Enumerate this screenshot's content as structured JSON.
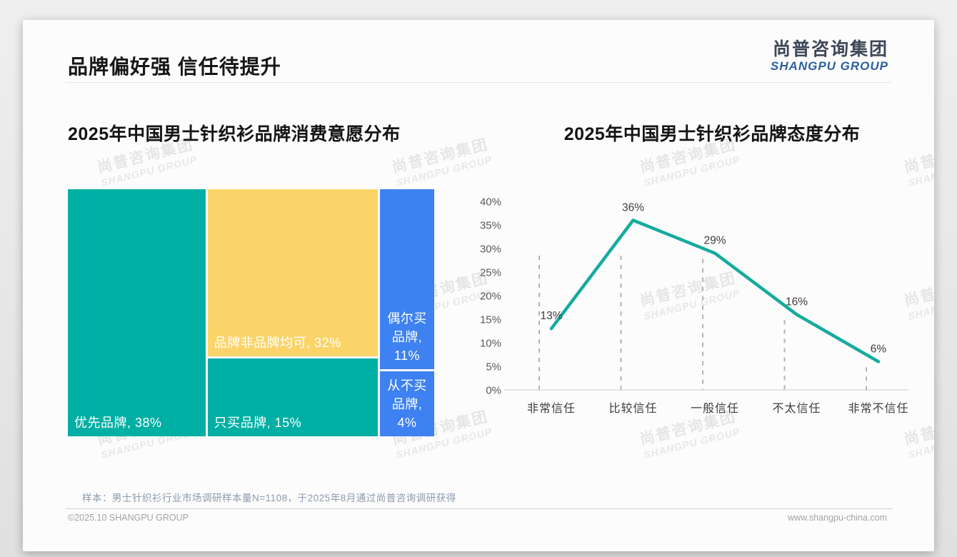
{
  "page": {
    "title": "品牌偏好强 信任待提升",
    "logo": {
      "cn": "尚普咨询集团",
      "en": "SHANGPU GROUP"
    },
    "watermark": {
      "cn": "尚普咨询集团",
      "en": "SHANGPU GROUP"
    },
    "source_note": "样本：男士针织衫行业市场调研样本量N=1108，于2025年8月通过尚普咨询调研获得",
    "footer": {
      "left": "©2025.10 SHANGPU GROUP",
      "right": "www.shangpu-china.com"
    }
  },
  "colors": {
    "teal": "#00AFA4",
    "yellow": "#FBD469",
    "blue": "#3E81F1",
    "line": "#15AB9E",
    "dash": "#B3B3B3",
    "axis": "#CCCCCC",
    "ytick": "#595959",
    "xtick": "#3D3D3D",
    "datalabel": "#3C3C3C"
  },
  "chart_data": [
    {
      "type": "treemap",
      "title": "2025年中国男士针织衫品牌消费意愿分布",
      "unit": "%",
      "segments": [
        {
          "label": "优先品牌",
          "value": 38,
          "color_key": "teal",
          "col": 0,
          "label_style": "bottom-left"
        },
        {
          "label": "品牌非品牌均可",
          "value": 32,
          "color_key": "yellow",
          "col": 1,
          "label_style": "bottom-left"
        },
        {
          "label": "只买品牌",
          "value": 15,
          "color_key": "teal",
          "col": 1,
          "label_style": "bottom-left"
        },
        {
          "label": "偶尔买品牌",
          "value": 11,
          "color_key": "blue",
          "col": 2,
          "label_style": "bottom-center-wrapped"
        },
        {
          "label": "从不买品牌",
          "value": 4,
          "color_key": "blue",
          "col": 2,
          "label_style": "bottom-center-wrapped"
        }
      ]
    },
    {
      "type": "line",
      "title": "2025年中国男士针织衫品牌态度分布",
      "categories": [
        "非常信任",
        "比较信任",
        "一般信任",
        "不太信任",
        "非常不信任"
      ],
      "values": [
        13,
        36,
        29,
        16,
        6
      ],
      "ylim": [
        0,
        40
      ],
      "ytick_step": 5,
      "tick_suffix": "%",
      "grid": "dashed vertical drop lines per category, light gray x-axis line",
      "legend": false
    }
  ]
}
